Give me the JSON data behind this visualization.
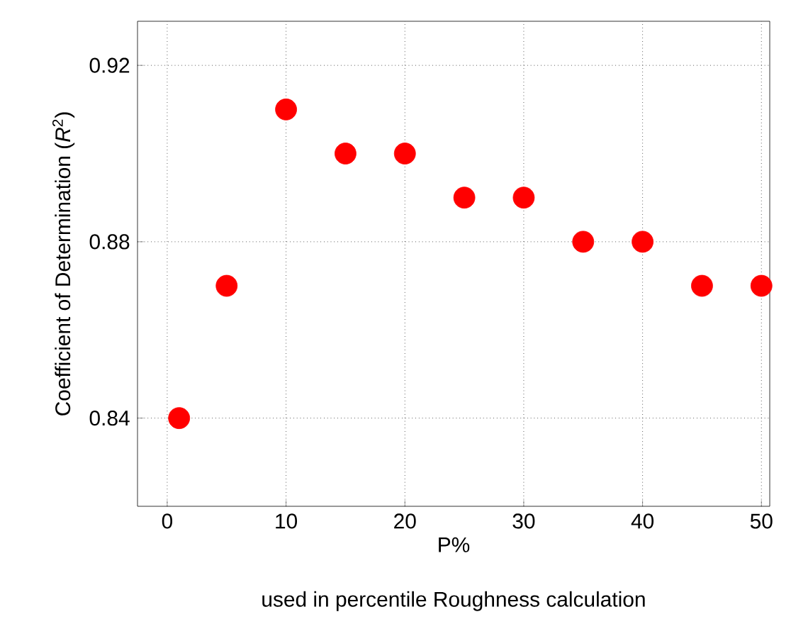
{
  "chart_data": {
    "type": "scatter",
    "xlabel": "P%",
    "ylabel": "Coefficient of Determination (*R*$^{2}$)",
    "annotations": [
      "used in percentile Roughness calculation"
    ],
    "x": [
      1,
      5,
      10,
      15,
      20,
      25,
      30,
      35,
      40,
      45,
      50
    ],
    "values": [
      0.84,
      0.87,
      0.91,
      0.9,
      0.9,
      0.89,
      0.89,
      0.88,
      0.88,
      0.87,
      0.87
    ],
    "color": "#ff0000",
    "marker": "circle",
    "grid": true,
    "xlim": [
      -2.5,
      50.7
    ],
    "ylim": [
      0.82,
      0.93
    ],
    "xticks": [
      0,
      10,
      20,
      30,
      40,
      50
    ],
    "yticks": [
      0.84,
      0.88,
      0.92
    ]
  }
}
